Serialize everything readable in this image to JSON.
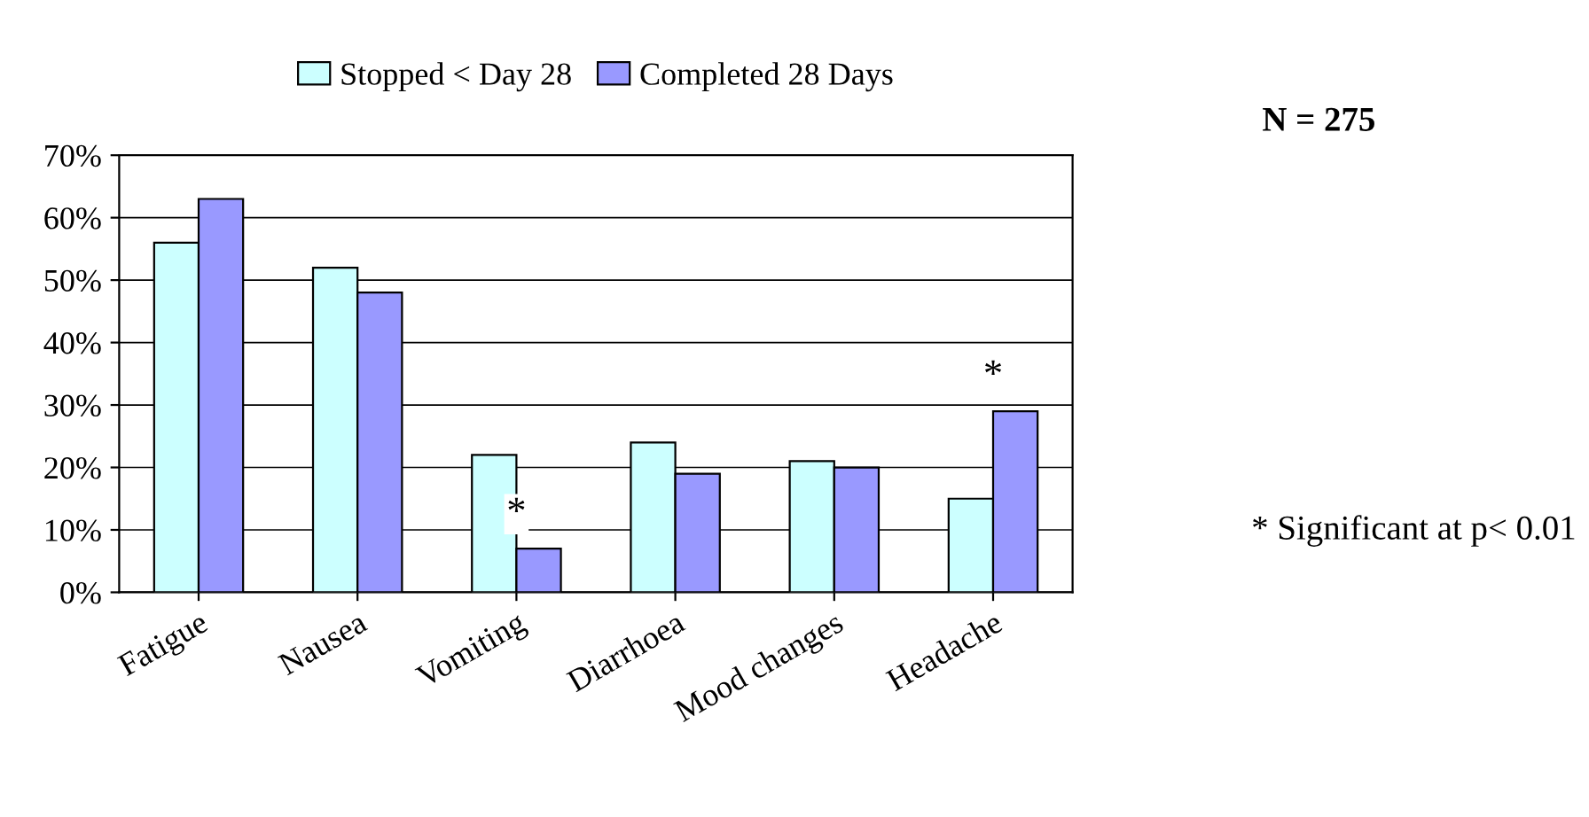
{
  "chart_data": {
    "type": "bar",
    "categories": [
      "Fatigue",
      "Nausea",
      "Vomiting",
      "Diarrhoea",
      "Mood changes",
      "Headache"
    ],
    "series": [
      {
        "name": "Stopped < Day 28",
        "color": "#ccffff",
        "values": [
          0.56,
          0.52,
          0.22,
          0.24,
          0.21,
          0.15
        ]
      },
      {
        "name": "Completed 28 Days",
        "color": "#9999ff",
        "values": [
          0.63,
          0.48,
          0.07,
          0.19,
          0.2,
          0.29
        ]
      }
    ],
    "ylim": [
      0,
      0.7
    ],
    "yticks": [
      {
        "value": 0,
        "label": "0%"
      },
      {
        "value": 0.1,
        "label": "10%"
      },
      {
        "value": 0.2,
        "label": "20%"
      },
      {
        "value": 0.3,
        "label": "30%"
      },
      {
        "value": 0.4,
        "label": "40%"
      },
      {
        "value": 0.5,
        "label": "50%"
      },
      {
        "value": 0.6,
        "label": "60%"
      },
      {
        "value": 0.7,
        "label": "70%"
      }
    ],
    "grid": "y",
    "legend": "top",
    "annotations": [
      "N = 275",
      "* Significant at p< 0.01",
      {
        "text": "*",
        "x": "Vomiting",
        "y": 0.07
      },
      {
        "text": "*",
        "x": "Headache",
        "y": 0.29
      }
    ]
  }
}
